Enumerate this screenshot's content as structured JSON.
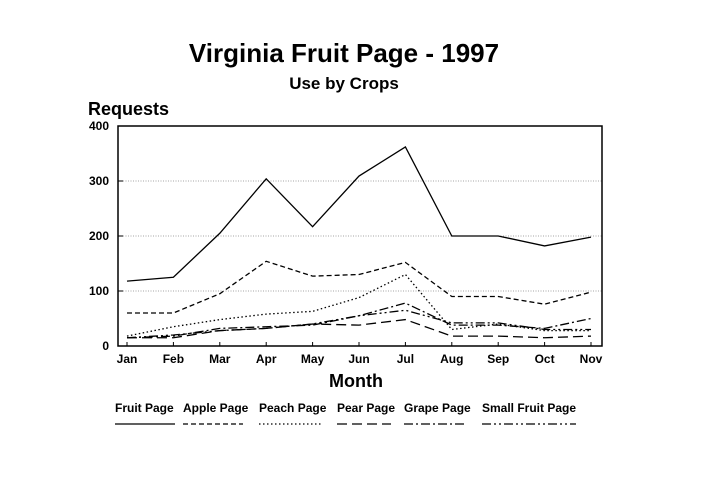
{
  "chart_data": {
    "type": "line",
    "title": "Virginia Fruit Page - 1997",
    "subtitle": "Use by Crops",
    "xlabel": "Month",
    "ylabel": "Requests",
    "categories": [
      "Jan",
      "Feb",
      "Mar",
      "Apr",
      "May",
      "Jun",
      "Jul",
      "Aug",
      "Sep",
      "Oct",
      "Nov"
    ],
    "yticks": [
      0,
      100,
      200,
      300,
      400
    ],
    "ylim": [
      0,
      400
    ],
    "grid": true,
    "legend_position": "bottom",
    "series": [
      {
        "name": "Fruit Page",
        "values": [
          118,
          125,
          205,
          304,
          217,
          309,
          362,
          200,
          200,
          182,
          198
        ],
        "dash": "solid"
      },
      {
        "name": "Apple Page",
        "values": [
          60,
          60,
          95,
          154,
          127,
          130,
          152,
          90,
          90,
          76,
          98
        ],
        "dash": "dashed"
      },
      {
        "name": "Peach Page",
        "values": [
          18,
          35,
          48,
          58,
          63,
          88,
          130,
          30,
          40,
          28,
          28
        ],
        "dash": "dotted"
      },
      {
        "name": "Pear Page",
        "values": [
          15,
          15,
          28,
          32,
          40,
          38,
          48,
          18,
          18,
          15,
          18
        ],
        "dash": "long-dash"
      },
      {
        "name": "Grape Page",
        "values": [
          15,
          18,
          32,
          35,
          38,
          55,
          78,
          38,
          38,
          32,
          50
        ],
        "dash": "dash-dot"
      },
      {
        "name": "Small Fruit Page",
        "values": [
          15,
          20,
          28,
          32,
          40,
          55,
          65,
          42,
          42,
          30,
          30
        ],
        "dash": "dash-dot-dot"
      }
    ]
  }
}
